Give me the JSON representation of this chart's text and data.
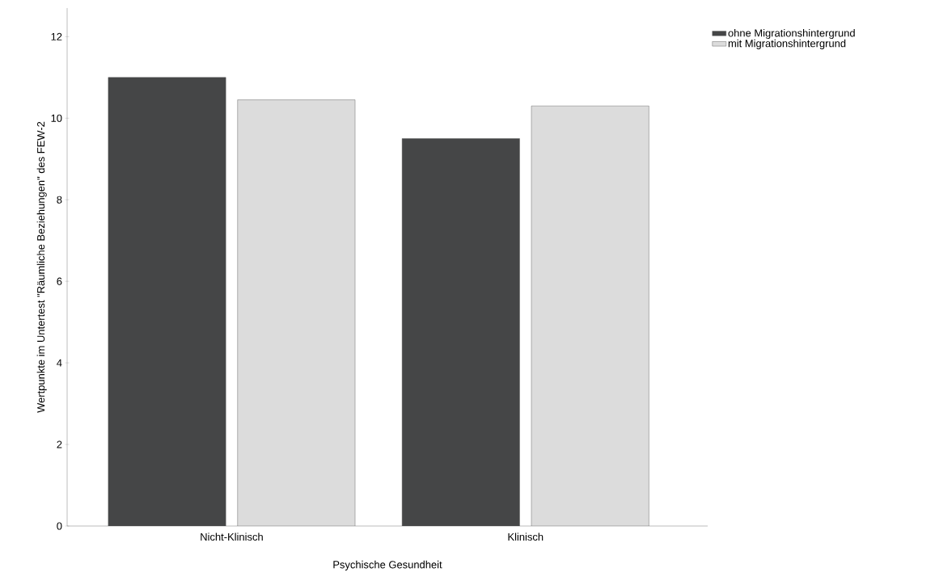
{
  "chart_data": {
    "type": "bar",
    "xlabel": "Psychische Gesundheit",
    "ylabel": "Wertpunkte im Untertest \"Räumliche Beziehungen\" des FEW-2",
    "categories": [
      "Nicht-Klinisch",
      "Klinisch"
    ],
    "series": [
      {
        "name": "ohne Migrationshintergrund",
        "color": "#454647",
        "values": [
          11.0,
          9.5
        ]
      },
      {
        "name": "mit Migrationshintergrund",
        "color": "#dcdcdc",
        "values": [
          10.45,
          10.3
        ]
      }
    ],
    "ylim": [
      0,
      12.7
    ],
    "yticks": [
      0,
      2,
      4,
      6,
      8,
      10,
      12
    ],
    "grid": false,
    "legend": "top right"
  }
}
